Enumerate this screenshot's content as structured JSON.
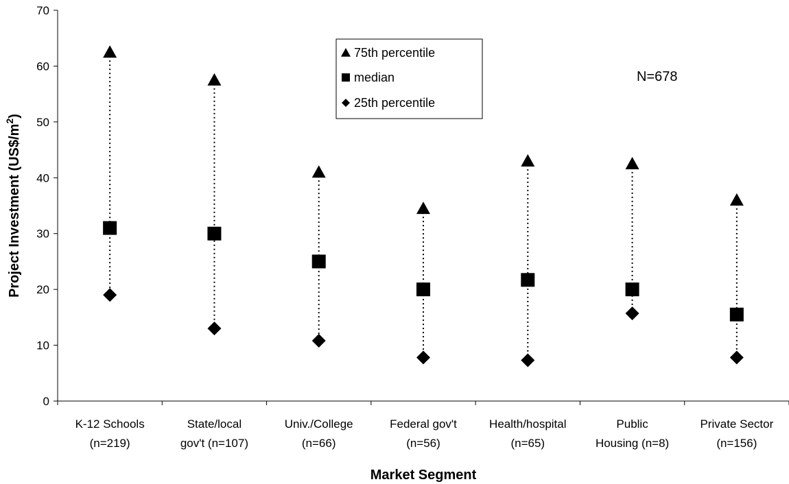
{
  "chart_data": {
    "type": "scatter",
    "xlabel": "Market Segment",
    "ylabel": "Project Investment (US$/m",
    "ylabel_superscript": "2",
    "ylabel_close": ")",
    "ylim": [
      0,
      70
    ],
    "yticks": [
      0,
      10,
      20,
      30,
      40,
      50,
      60,
      70
    ],
    "grid": false,
    "legend_position": "top-center",
    "categories": [
      {
        "line1": "K-12 Schools",
        "line2": "(n=219)"
      },
      {
        "line1": "State/local",
        "line2": "gov't (n=107)"
      },
      {
        "line1": "Univ./College",
        "line2": "(n=66)"
      },
      {
        "line1": "Federal gov't",
        "line2": "(n=56)"
      },
      {
        "line1": "Health/hospital",
        "line2": "(n=65)"
      },
      {
        "line1": "Public",
        "line2": "Housing (n=8)"
      },
      {
        "line1": "Private Sector",
        "line2": "(n=156)"
      }
    ],
    "series": [
      {
        "name": "75th percentile",
        "marker": "triangle",
        "values": [
          62.5,
          57.5,
          41,
          34.5,
          43,
          42.5,
          36
        ]
      },
      {
        "name": "median",
        "marker": "square",
        "values": [
          31,
          30,
          25,
          20,
          21.7,
          20,
          15.5
        ]
      },
      {
        "name": "25th percentile",
        "marker": "diamond",
        "values": [
          19,
          13,
          10.8,
          7.8,
          7.3,
          15.7,
          7.8
        ]
      }
    ],
    "annotation": "N=678",
    "colors": {
      "marker": "#000000",
      "line": "#000000"
    }
  }
}
